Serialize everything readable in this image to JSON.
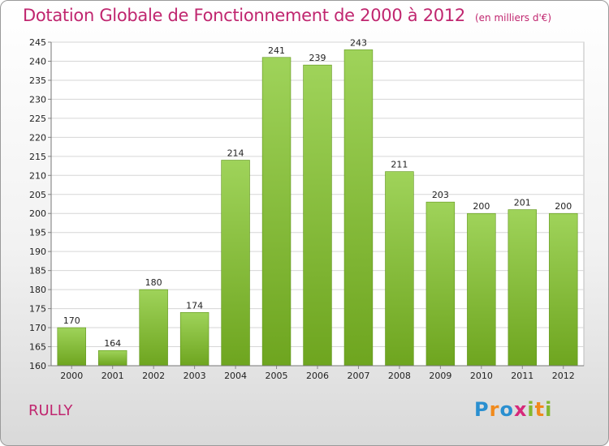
{
  "header": {
    "title": "Dotation Globale de Fonctionnement de 2000 à 2012",
    "unit": "(en milliers d'€)"
  },
  "footer": {
    "commune": "RULLY",
    "logo": "Proxiti"
  },
  "colors": {
    "title": "#c0266f",
    "bar_top": "#9fd35a",
    "bar_bottom": "#6ea51f"
  },
  "chart_data": {
    "type": "bar",
    "title": "Dotation Globale de Fonctionnement de 2000 à 2012",
    "subtitle": "(en milliers d'€)",
    "xlabel": "",
    "ylabel": "",
    "categories": [
      "2000",
      "2001",
      "2002",
      "2003",
      "2004",
      "2005",
      "2006",
      "2007",
      "2008",
      "2009",
      "2010",
      "2011",
      "2012"
    ],
    "values": [
      170,
      164,
      180,
      174,
      214,
      241,
      239,
      243,
      211,
      203,
      200,
      201,
      200
    ],
    "ylim": [
      160,
      245
    ],
    "yticks": [
      160,
      165,
      170,
      175,
      180,
      185,
      190,
      195,
      200,
      205,
      210,
      215,
      220,
      225,
      230,
      235,
      240,
      245
    ],
    "grid": true,
    "legend": "none"
  }
}
